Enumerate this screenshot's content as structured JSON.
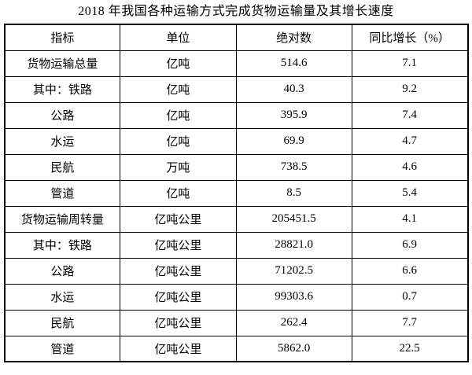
{
  "title": "2018 年我国各种运输方式完成货物运输量及其增长速度",
  "table": {
    "headers": [
      "指标",
      "单位",
      "绝对数",
      "同比增长（%）"
    ],
    "rows": [
      [
        "货物运输总量",
        "亿吨",
        "514.6",
        "7.1"
      ],
      [
        "其中：铁路",
        "亿吨",
        "40.3",
        "9.2"
      ],
      [
        "公路",
        "亿吨",
        "395.9",
        "7.4"
      ],
      [
        "水运",
        "亿吨",
        "69.9",
        "4.7"
      ],
      [
        "民航",
        "万吨",
        "738.5",
        "4.6"
      ],
      [
        "管道",
        "亿吨",
        "8.5",
        "5.4"
      ],
      [
        "货物运输周转量",
        "亿吨公里",
        "205451.5",
        "4.1"
      ],
      [
        "其中：铁路",
        "亿吨公里",
        "28821.0",
        "6.9"
      ],
      [
        "公路",
        "亿吨公里",
        "71202.5",
        "6.6"
      ],
      [
        "水运",
        "亿吨公里",
        "99303.6",
        "0.7"
      ],
      [
        "民航",
        "亿吨公里",
        "262.4",
        "7.7"
      ],
      [
        "管道",
        "亿吨公里",
        "5862.0",
        "22.5"
      ]
    ]
  }
}
